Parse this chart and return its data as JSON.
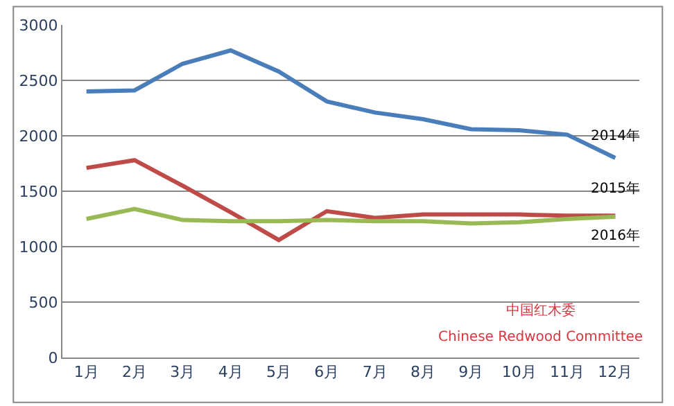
{
  "chart_data": {
    "type": "line",
    "categories": [
      "1月",
      "2月",
      "3月",
      "4月",
      "5月",
      "6月",
      "7月",
      "8月",
      "9月",
      "10月",
      "11月",
      "12月"
    ],
    "series": [
      {
        "name": "2014年",
        "color": "#4a7ebb",
        "values": [
          2400,
          2410,
          2650,
          2770,
          2580,
          2310,
          2210,
          2150,
          2060,
          2050,
          2010,
          1800
        ]
      },
      {
        "name": "2015年",
        "color": "#be4b48",
        "values": [
          1710,
          1780,
          1550,
          1310,
          1060,
          1320,
          1260,
          1290,
          1290,
          1290,
          1280,
          1280
        ]
      },
      {
        "name": "2016年",
        "color": "#98b954",
        "values": [
          1250,
          1340,
          1240,
          1230,
          1230,
          1240,
          1230,
          1230,
          1210,
          1220,
          1250,
          1270
        ]
      }
    ],
    "ylim": [
      0,
      3000
    ],
    "yticks": [
      0,
      500,
      1000,
      1500,
      2000,
      2500,
      3000
    ],
    "grid": "y",
    "legend": false,
    "marker": "none",
    "line_style": "solid",
    "annotations": [
      "中国红木委",
      "Chinese Redwood Committee"
    ]
  }
}
